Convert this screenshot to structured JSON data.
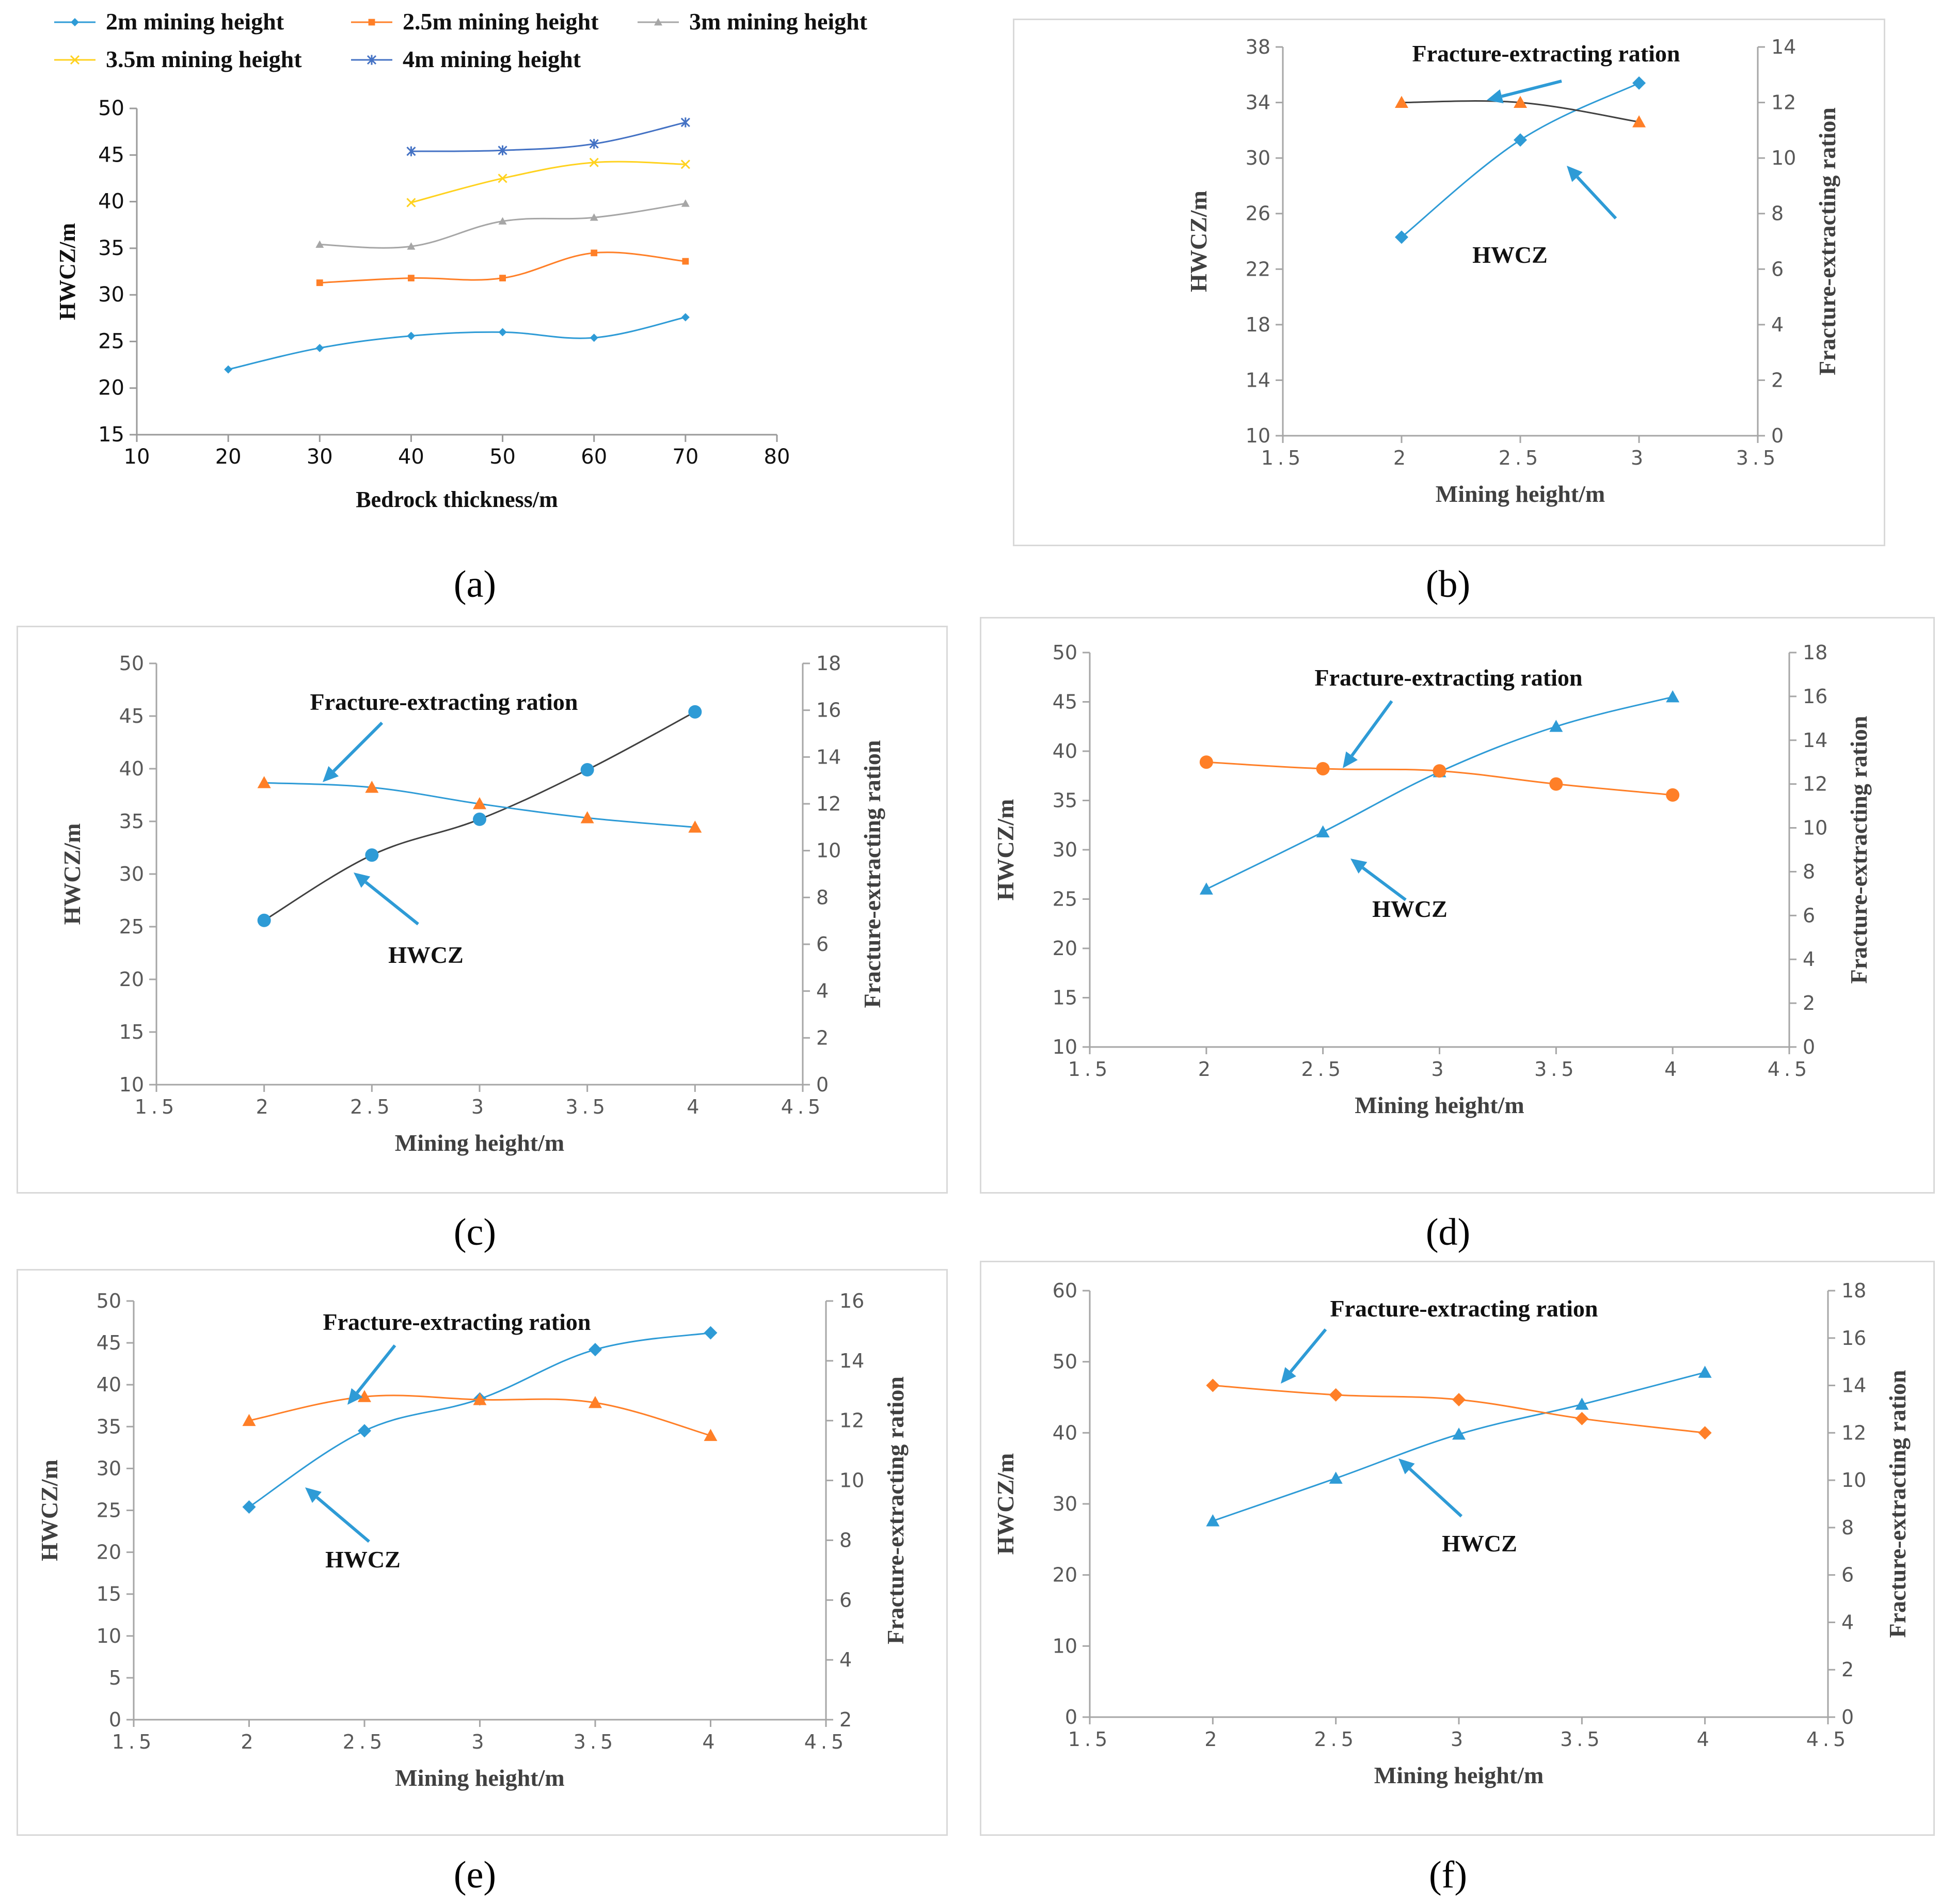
{
  "captions": [
    "(a)",
    "(b)",
    "(c)",
    "(d)",
    "(e)",
    "(f)"
  ],
  "colors": {
    "blue": "#2e9bd6",
    "orange": "#ff7f27",
    "gray": "#a6a6a6",
    "yellow": "#ffd21f",
    "darkblue": "#4472c4",
    "black": "#404040",
    "arrow": "#2e9bd6"
  },
  "chart_data": [
    {
      "id": "a",
      "type": "line",
      "xlabel": "Bedrock thickness/m",
      "ylabel": "HWCZ/m",
      "xlim": [
        10,
        80
      ],
      "ylim": [
        15,
        50
      ],
      "xticks": [
        10,
        20,
        30,
        40,
        50,
        60,
        70,
        80
      ],
      "yticks": [
        15,
        20,
        25,
        30,
        35,
        40,
        45,
        50
      ],
      "legend": "top",
      "series": [
        {
          "name": "2m mining height",
          "marker": "diamond",
          "color": "#2e9bd6",
          "x": [
            20,
            30,
            40,
            50,
            60,
            70
          ],
          "values": [
            22.0,
            24.3,
            25.6,
            26.0,
            25.4,
            27.6
          ]
        },
        {
          "name": "2.5m mining height",
          "marker": "square",
          "color": "#ff7f27",
          "x": [
            30,
            40,
            50,
            60,
            70
          ],
          "values": [
            31.3,
            31.8,
            31.8,
            34.5,
            33.6
          ]
        },
        {
          "name": "3m mining height",
          "marker": "triangle",
          "color": "#a6a6a6",
          "x": [
            30,
            40,
            50,
            60,
            70
          ],
          "values": [
            35.4,
            35.2,
            37.9,
            38.3,
            39.8
          ]
        },
        {
          "name": "3.5m  mining height",
          "marker": "x",
          "color": "#ffd21f",
          "x": [
            40,
            50,
            60,
            70
          ],
          "values": [
            39.9,
            42.5,
            44.2,
            44.0
          ]
        },
        {
          "name": "4m  mining height",
          "marker": "star",
          "color": "#4472c4",
          "x": [
            40,
            50,
            60,
            70
          ],
          "values": [
            45.4,
            45.5,
            46.2,
            48.5
          ]
        }
      ]
    },
    {
      "id": "b",
      "type": "line",
      "xlabel": "Mining height/m",
      "ylabel": "HWCZ/m",
      "y2label": "Fracture-extracting ration",
      "xlim": [
        1.5,
        3.5
      ],
      "ylim": [
        10,
        38
      ],
      "y2lim": [
        0,
        14
      ],
      "xticks": [
        1.5,
        2,
        2.5,
        3,
        3.5
      ],
      "xticklabels": [
        "1.5",
        "2",
        "2.5",
        "3",
        "3.5"
      ],
      "yticks": [
        10,
        14,
        18,
        22,
        26,
        30,
        34,
        38
      ],
      "y2ticks": [
        0,
        2,
        4,
        6,
        8,
        10,
        12,
        14
      ],
      "annotations": {
        "ratio": "Fracture-extracting ration",
        "hwcz": "HWCZ"
      },
      "series": [
        {
          "name": "HWCZ",
          "axis": "left",
          "marker": "diamond",
          "color": "#2e9bd6",
          "line_color": "#2e9bd6",
          "x": [
            2,
            2.5,
            3
          ],
          "values": [
            24.3,
            31.3,
            35.4
          ]
        },
        {
          "name": "Fracture-extracting ration",
          "axis": "right",
          "marker": "triangle",
          "color": "#ff7f27",
          "line_color": "#404040",
          "x": [
            2,
            2.5,
            3
          ],
          "values": [
            12.0,
            12.0,
            11.3
          ]
        }
      ]
    },
    {
      "id": "c",
      "type": "line",
      "xlabel": "Mining height/m",
      "ylabel": "HWCZ/m",
      "y2label": "Fracture-extracting ration",
      "xlim": [
        1.5,
        4.5
      ],
      "ylim": [
        10,
        50
      ],
      "y2lim": [
        0,
        18
      ],
      "xticks": [
        1.5,
        2,
        2.5,
        3,
        3.5,
        4,
        4.5
      ],
      "xticklabels": [
        "1.5",
        "2",
        "2.5",
        "3",
        "3.5",
        "4",
        "4.5"
      ],
      "yticks": [
        10,
        15,
        20,
        25,
        30,
        35,
        40,
        45,
        50
      ],
      "y2ticks": [
        0,
        2,
        4,
        6,
        8,
        10,
        12,
        14,
        16,
        18
      ],
      "annotations": {
        "ratio": "Fracture-extracting ration",
        "hwcz": "HWCZ"
      },
      "series": [
        {
          "name": "HWCZ",
          "axis": "left",
          "marker": "circle",
          "color": "#2e9bd6",
          "line_color": "#404040",
          "x": [
            2,
            2.5,
            3,
            3.5,
            4
          ],
          "values": [
            25.6,
            31.8,
            35.2,
            39.9,
            45.4
          ]
        },
        {
          "name": "Fracture-extracting ration",
          "axis": "right",
          "marker": "triangle",
          "color": "#ff7f27",
          "line_color": "#2e9bd6",
          "x": [
            2,
            2.5,
            3,
            3.5,
            4
          ],
          "values": [
            12.9,
            12.7,
            12.0,
            11.4,
            11.0
          ]
        }
      ]
    },
    {
      "id": "d",
      "type": "line",
      "xlabel": "Mining height/m",
      "ylabel": "HWCZ/m",
      "y2label": "Fracture-extracting ration",
      "xlim": [
        1.5,
        4.5
      ],
      "ylim": [
        10,
        50
      ],
      "y2lim": [
        0,
        18
      ],
      "xticks": [
        1.5,
        2,
        2.5,
        3,
        3.5,
        4,
        4.5
      ],
      "xticklabels": [
        "1.5",
        "2",
        "2.5",
        "3",
        "3.5",
        "4",
        "4.5"
      ],
      "yticks": [
        10,
        15,
        20,
        25,
        30,
        35,
        40,
        45,
        50
      ],
      "y2ticks": [
        0,
        2,
        4,
        6,
        8,
        10,
        12,
        14,
        16,
        18
      ],
      "annotations": {
        "ratio": "Fracture-extracting ration",
        "hwcz": "HWCZ"
      },
      "series": [
        {
          "name": "HWCZ",
          "axis": "left",
          "marker": "triangle",
          "color": "#2e9bd6",
          "line_color": "#2e9bd6",
          "x": [
            2,
            2.5,
            3,
            3.5,
            4
          ],
          "values": [
            26.0,
            31.8,
            37.9,
            42.5,
            45.5
          ]
        },
        {
          "name": "Fracture-extracting ration",
          "axis": "right",
          "marker": "circle",
          "color": "#ff7f27",
          "line_color": "#ff7f27",
          "x": [
            2,
            2.5,
            3,
            3.5,
            4
          ],
          "values": [
            13.0,
            12.7,
            12.6,
            12.0,
            11.5
          ]
        }
      ]
    },
    {
      "id": "e",
      "type": "line",
      "xlabel": "Mining height/m",
      "ylabel": "HWCZ/m",
      "y2label": "Fracture-extracting ration",
      "xlim": [
        1.5,
        4.5
      ],
      "ylim": [
        0,
        50
      ],
      "y2lim": [
        2,
        16
      ],
      "xticks": [
        1.5,
        2,
        2.5,
        3,
        3.5,
        4,
        4.5
      ],
      "xticklabels": [
        "1.5",
        "2",
        "2.5",
        "3",
        "3.5",
        "4",
        "4.5"
      ],
      "yticks": [
        0,
        5,
        10,
        15,
        20,
        25,
        30,
        35,
        40,
        45,
        50
      ],
      "y2ticks": [
        2,
        4,
        6,
        8,
        10,
        12,
        14,
        16
      ],
      "annotations": {
        "ratio": "Fracture-extracting ration",
        "hwcz": "HWCZ"
      },
      "series": [
        {
          "name": "HWCZ",
          "axis": "left",
          "marker": "diamond",
          "color": "#2e9bd6",
          "line_color": "#2e9bd6",
          "x": [
            2,
            2.5,
            3,
            3.5,
            4
          ],
          "values": [
            25.4,
            34.5,
            38.3,
            44.2,
            46.2
          ]
        },
        {
          "name": "Fracture-extracting ration",
          "axis": "right",
          "marker": "triangle",
          "color": "#ff7f27",
          "line_color": "#ff7f27",
          "x": [
            2,
            2.5,
            3,
            3.5,
            4
          ],
          "values": [
            12.0,
            12.8,
            12.7,
            12.6,
            11.5
          ]
        }
      ]
    },
    {
      "id": "f",
      "type": "line",
      "xlabel": "Mining height/m",
      "ylabel": "HWCZ/m",
      "y2label": "Fracture-extracting ration",
      "xlim": [
        1.5,
        4.5
      ],
      "ylim": [
        0,
        60
      ],
      "y2lim": [
        0,
        18
      ],
      "xticks": [
        1.5,
        2,
        2.5,
        3,
        3.5,
        4,
        4.5
      ],
      "xticklabels": [
        "1.5",
        "2",
        "2.5",
        "3",
        "3.5",
        "4",
        "4.5"
      ],
      "yticks": [
        0,
        10,
        20,
        30,
        40,
        50,
        60
      ],
      "y2ticks": [
        0,
        2,
        4,
        6,
        8,
        10,
        12,
        14,
        16,
        18
      ],
      "annotations": {
        "ratio": "Fracture-extracting ration",
        "hwcz": "HWCZ"
      },
      "series": [
        {
          "name": "HWCZ",
          "axis": "left",
          "marker": "triangle",
          "color": "#2e9bd6",
          "line_color": "#2e9bd6",
          "x": [
            2,
            2.5,
            3,
            3.5,
            4
          ],
          "values": [
            27.6,
            33.6,
            39.8,
            44.0,
            48.5
          ]
        },
        {
          "name": "Fracture-extracting ration",
          "axis": "right",
          "marker": "diamond",
          "color": "#ff7f27",
          "line_color": "#ff7f27",
          "x": [
            2,
            2.5,
            3,
            3.5,
            4
          ],
          "values": [
            14.0,
            13.6,
            13.4,
            12.6,
            12.0
          ]
        }
      ]
    }
  ]
}
